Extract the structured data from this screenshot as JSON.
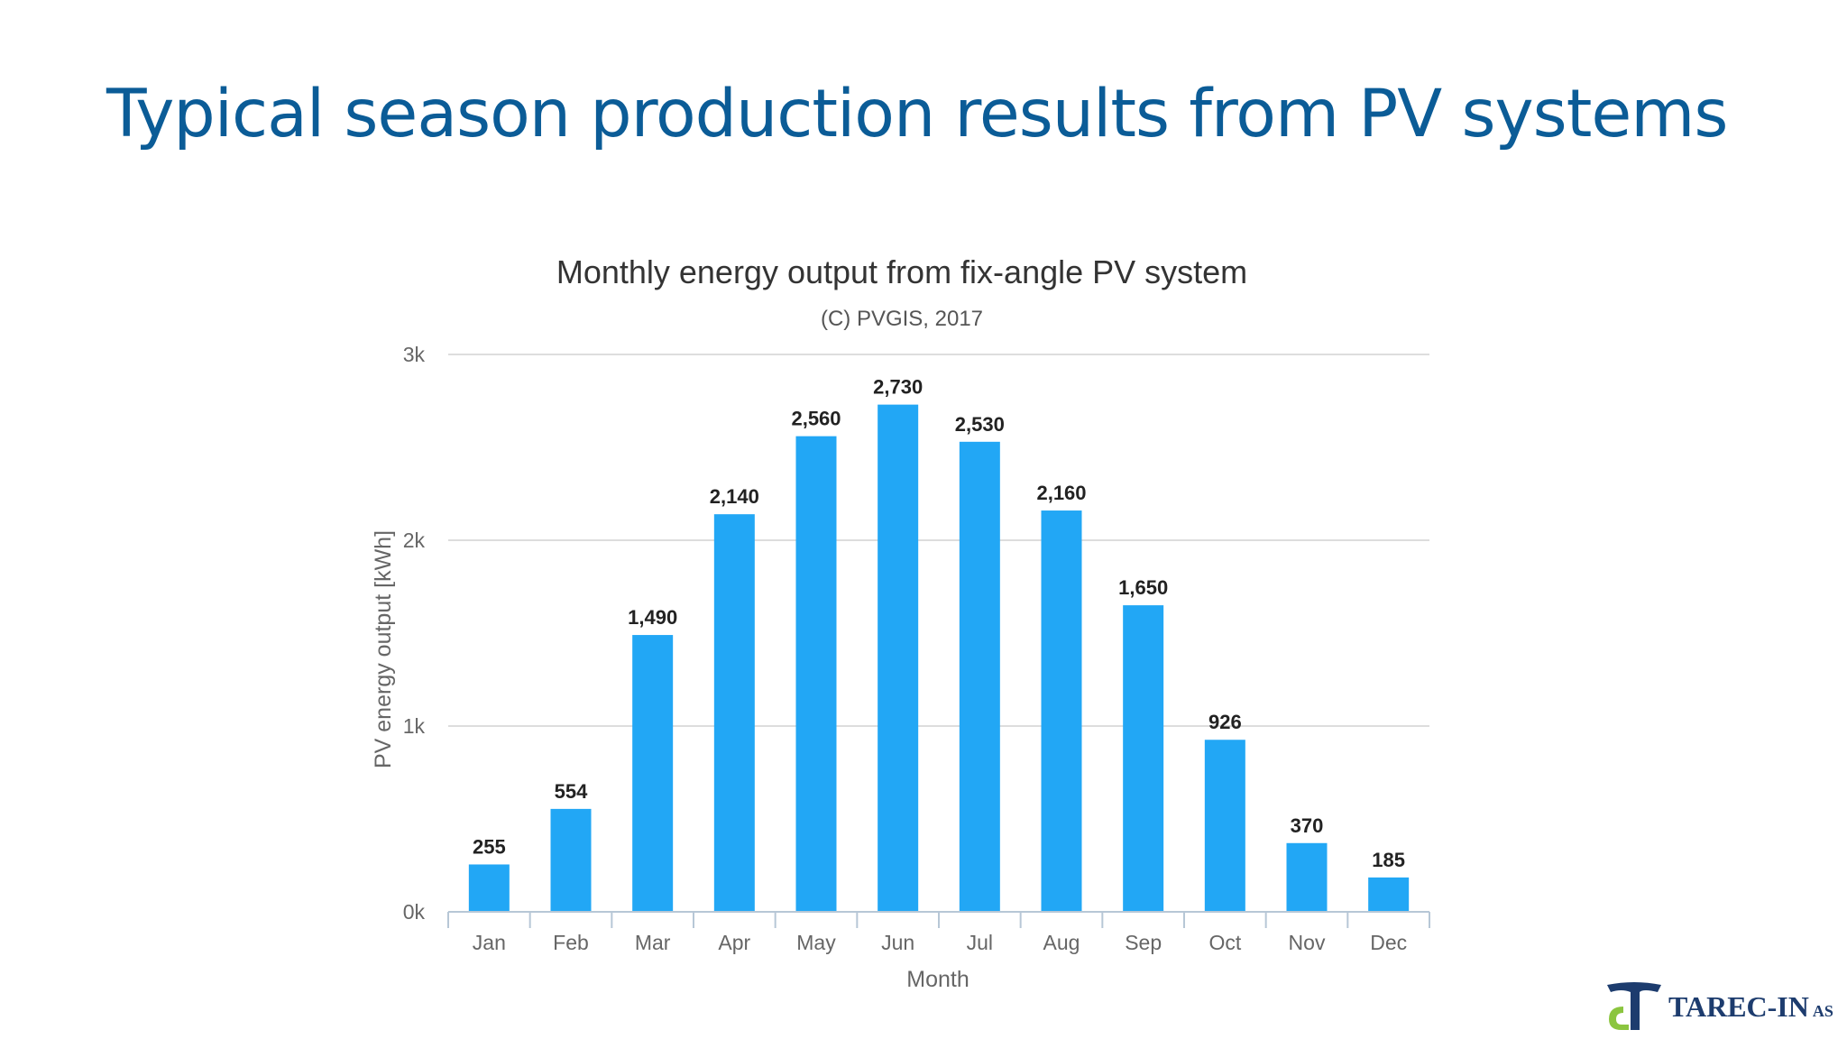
{
  "slide": {
    "title": "Typical season production results from PV systems"
  },
  "chart_data": {
    "type": "bar",
    "title": "Monthly energy output from fix-angle PV system",
    "subtitle": "(C) PVGIS, 2017",
    "xlabel": "Month",
    "ylabel": "PV energy output [kWh]",
    "categories": [
      "Jan",
      "Feb",
      "Mar",
      "Apr",
      "May",
      "Jun",
      "Jul",
      "Aug",
      "Sep",
      "Oct",
      "Nov",
      "Dec"
    ],
    "values": [
      255,
      554,
      1490,
      2140,
      2560,
      2730,
      2530,
      2160,
      1650,
      926,
      370,
      185
    ],
    "data_labels": [
      "255",
      "554",
      "1,490",
      "2,140",
      "2,560",
      "2,730",
      "2,530",
      "2,160",
      "1,650",
      "926",
      "370",
      "185"
    ],
    "y_ticks": [
      {
        "value": 0,
        "label": "0k"
      },
      {
        "value": 1000,
        "label": "1k"
      },
      {
        "value": 2000,
        "label": "2k"
      },
      {
        "value": 3000,
        "label": "3k"
      }
    ],
    "ylim": [
      0,
      3000
    ],
    "grid": true,
    "legend": "none",
    "bar_color": "#22a7f5",
    "grid_color": "#dddddd"
  },
  "logo": {
    "name": "TAREC-IN",
    "suffix": "AS",
    "icon": "tarec-logo-icon",
    "colors": {
      "primary": "#1d3c6e",
      "accent": "#8bc53f"
    }
  }
}
